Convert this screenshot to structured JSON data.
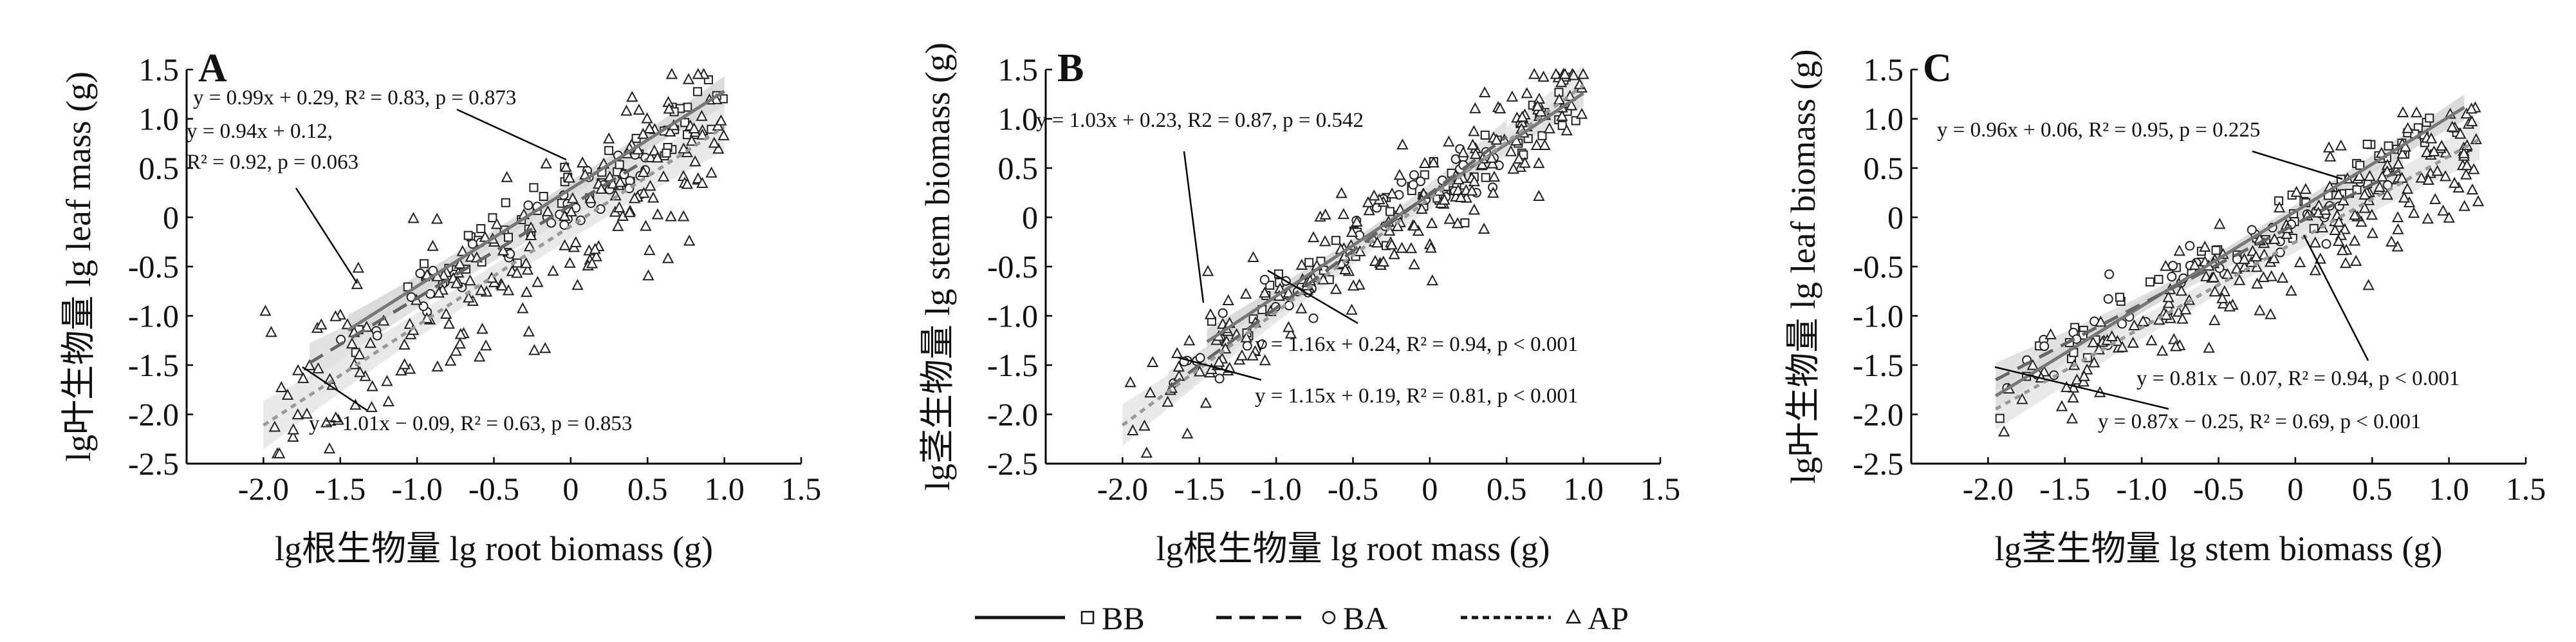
{
  "chart_data": [
    {
      "type": "scatter",
      "panel": "A",
      "xlabel": "lg根生物量 lg root biomass (g)",
      "ylabel": "lg叶生物量 lg leaf mass (g)",
      "xlim": [
        -2.5,
        1.5
      ],
      "ylim": [
        -2.5,
        1.5
      ],
      "xticks": [
        "-2.0",
        "-1.5",
        "-1.0",
        "-0.5",
        "0",
        "0.5",
        "1.0",
        "1.5"
      ],
      "yticks": [
        "1.5",
        "1.0",
        "0.5",
        "0",
        "-0.5",
        "-1.0",
        "-1.5",
        "-2.0",
        "-2.5"
      ],
      "series": [
        {
          "name": "BB",
          "slope": 0.99,
          "intercept": 0.29,
          "x_range": [
            -1.45,
            1.0
          ]
        },
        {
          "name": "BA",
          "slope": 0.94,
          "intercept": 0.12,
          "x_range": [
            -1.7,
            0.5
          ]
        },
        {
          "name": "AP",
          "slope": 1.01,
          "intercept": -0.09,
          "x_range": [
            -2.0,
            1.0
          ]
        }
      ],
      "annotations": [
        "y = 0.99x + 0.29, R² = 0.83, p = 0.873",
        "y = 0.94x + 0.12,",
        "R² = 0.92, p = 0.063",
        "y = 1.01x − 0.09, R² = 0.63, p = 0.853"
      ]
    },
    {
      "type": "scatter",
      "panel": "B",
      "xlabel": "lg根生物量 lg root mass (g)",
      "ylabel": "lg茎生物量 lg stem biomass (g)",
      "xlim": [
        -2.5,
        1.5
      ],
      "ylim": [
        -2.5,
        1.5
      ],
      "xticks": [
        "-2.0",
        "-1.5",
        "-1.0",
        "-0.5",
        "0",
        "0.5",
        "1.0",
        "1.5"
      ],
      "yticks": [
        "1.5",
        "1.0",
        "0.5",
        "0",
        "-0.5",
        "-1.0",
        "-1.5",
        "-2.0",
        "-2.5"
      ],
      "series": [
        {
          "name": "BB",
          "slope": 1.03,
          "intercept": 0.23,
          "x_range": [
            -1.45,
            1.0
          ]
        },
        {
          "name": "BA",
          "slope": 1.16,
          "intercept": 0.24,
          "x_range": [
            -1.7,
            0.5
          ]
        },
        {
          "name": "AP",
          "slope": 1.15,
          "intercept": 0.19,
          "x_range": [
            -2.0,
            1.0
          ]
        }
      ],
      "annotations": [
        "y = 1.03x + 0.23, R2 = 0.87, p = 0.542",
        "y = 1.16x + 0.24, R² = 0.94, p < 0.001",
        "y = 1.15x + 0.19, R² = 0.81, p < 0.001"
      ]
    },
    {
      "type": "scatter",
      "panel": "C",
      "xlabel": "lg茎生物量 lg stem biomass (g)",
      "ylabel": "lg叶生物量 lg leaf biomass (g)",
      "xlim": [
        -2.5,
        1.5
      ],
      "ylim": [
        -2.5,
        1.5
      ],
      "xticks": [
        "-2.0",
        "-1.5",
        "-1.0",
        "-0.5",
        "0",
        "0.5",
        "1.0",
        "1.5"
      ],
      "yticks": [
        "1.5",
        "1.0",
        "0.5",
        "0",
        "-0.5",
        "-1.0",
        "-1.5",
        "-2.0",
        "-2.5"
      ],
      "series": [
        {
          "name": "BB",
          "slope": 0.96,
          "intercept": 0.06,
          "x_range": [
            -1.95,
            1.1
          ]
        },
        {
          "name": "BA",
          "slope": 0.81,
          "intercept": -0.07,
          "x_range": [
            -1.95,
            0.7
          ]
        },
        {
          "name": "AP",
          "slope": 0.87,
          "intercept": -0.25,
          "x_range": [
            -1.95,
            1.2
          ]
        }
      ],
      "annotations": [
        "y = 0.96x + 0.06, R² = 0.95, p = 0.225",
        "y = 0.81x − 0.07, R² = 0.94, p < 0.001",
        "y = 0.87x − 0.25, R² = 0.69, p < 0.001"
      ]
    }
  ],
  "legend": {
    "items": [
      {
        "label": "BB",
        "line": "solid",
        "marker": "square"
      },
      {
        "label": "BA",
        "line": "dashed",
        "marker": "circle"
      },
      {
        "label": "AP",
        "line": "dotted",
        "marker": "triangle"
      }
    ]
  }
}
